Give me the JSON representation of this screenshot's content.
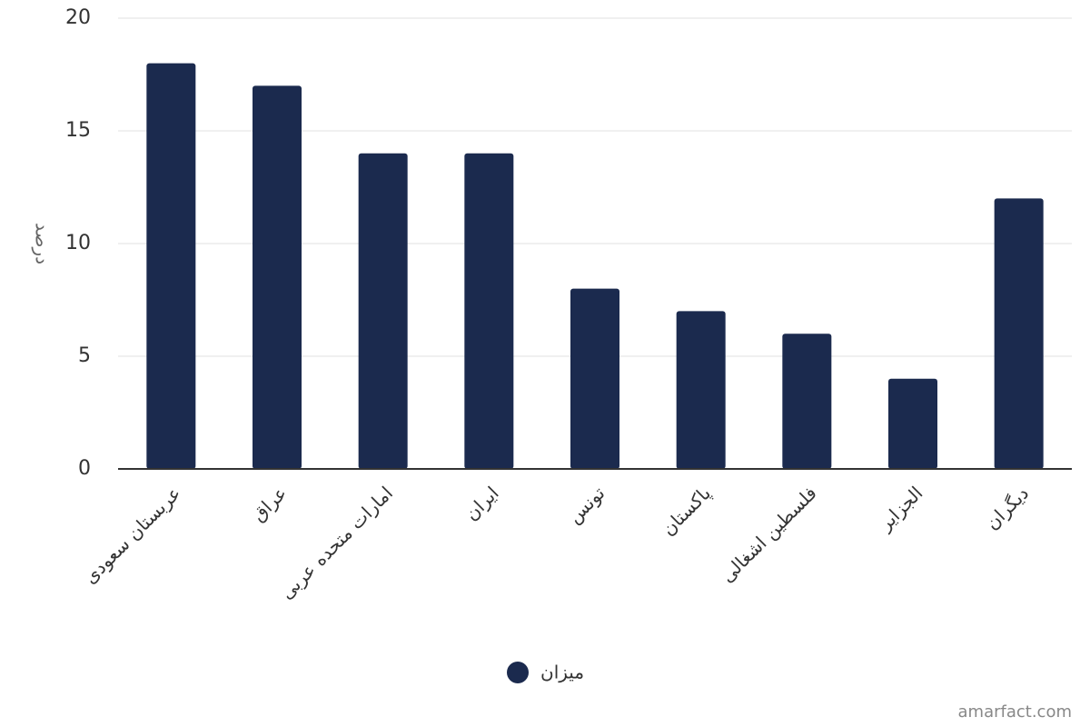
{
  "chart_data": {
    "type": "bar",
    "y_label": "درصد",
    "categories": [
      "عربستان سعودی",
      "عراق",
      "امارات متحده عربی",
      "ایران",
      "تونس",
      "پاکستان",
      "فلسطین اشغالی",
      "الجزایر",
      "دیگران"
    ],
    "series": [
      {
        "name": "میزان",
        "color": "#1b2a4e",
        "values": [
          18,
          17,
          14,
          14,
          8,
          7,
          6,
          4,
          12
        ]
      }
    ],
    "ylim": [
      0,
      20
    ],
    "yticks": [
      0,
      5,
      10,
      15,
      20
    ],
    "grid": true,
    "credit": "amarfact.com"
  }
}
